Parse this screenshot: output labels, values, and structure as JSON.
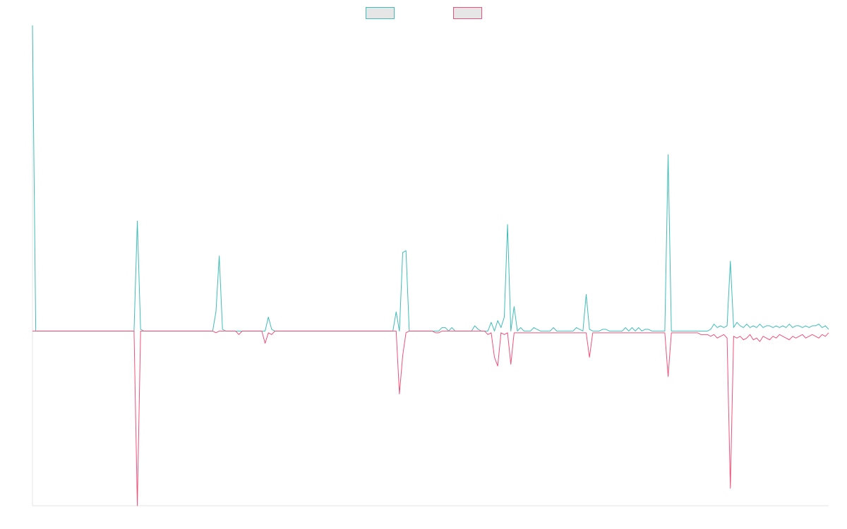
{
  "chart_data": {
    "type": "line",
    "title": "",
    "xlabel": "",
    "ylabel": "",
    "legend": {
      "position": "top-center"
    },
    "grid": false,
    "x_count": 244,
    "ylim": [
      -100,
      175
    ],
    "colors": {
      "series_a": "#3fbdb9",
      "series_b": "#f0517a",
      "legend_fill": "#e6e6e6",
      "axis": "#e6e6e6"
    },
    "series": [
      {
        "key": "series_a",
        "points": [
          [
            0,
            175
          ],
          [
            1,
            0
          ],
          [
            31,
            0
          ],
          [
            32,
            63
          ],
          [
            33,
            1
          ],
          [
            34,
            0
          ],
          [
            55,
            0
          ],
          [
            56,
            11
          ],
          [
            57,
            43
          ],
          [
            58,
            1
          ],
          [
            59,
            0
          ],
          [
            71,
            0
          ],
          [
            72,
            8
          ],
          [
            73,
            1
          ],
          [
            74,
            0
          ],
          [
            110,
            0
          ],
          [
            111,
            11
          ],
          [
            112,
            0
          ],
          [
            113,
            45
          ],
          [
            114,
            46
          ],
          [
            115,
            0
          ],
          [
            124,
            0
          ],
          [
            125,
            2
          ],
          [
            126,
            2
          ],
          [
            127,
            0
          ],
          [
            128,
            2
          ],
          [
            129,
            0
          ],
          [
            134,
            0
          ],
          [
            135,
            3
          ],
          [
            136,
            1
          ],
          [
            137,
            0
          ],
          [
            139,
            0
          ],
          [
            140,
            5
          ],
          [
            141,
            0
          ],
          [
            142,
            6
          ],
          [
            143,
            2
          ],
          [
            144,
            8
          ],
          [
            145,
            61
          ],
          [
            146,
            0
          ],
          [
            147,
            14
          ],
          [
            148,
            0
          ],
          [
            149,
            2
          ],
          [
            150,
            0
          ],
          [
            152,
            0
          ],
          [
            153,
            2
          ],
          [
            154,
            1
          ],
          [
            155,
            0
          ],
          [
            158,
            0
          ],
          [
            159,
            2
          ],
          [
            160,
            0
          ],
          [
            165,
            0
          ],
          [
            166,
            2
          ],
          [
            167,
            1
          ],
          [
            168,
            0
          ],
          [
            169,
            21
          ],
          [
            170,
            1
          ],
          [
            171,
            0
          ],
          [
            173,
            0
          ],
          [
            174,
            1
          ],
          [
            175,
            1
          ],
          [
            176,
            0
          ],
          [
            180,
            0
          ],
          [
            181,
            2
          ],
          [
            182,
            0
          ],
          [
            183,
            2
          ],
          [
            184,
            0
          ],
          [
            185,
            2
          ],
          [
            186,
            0
          ],
          [
            187,
            1
          ],
          [
            188,
            1
          ],
          [
            189,
            0
          ],
          [
            193,
            0
          ],
          [
            194,
            101
          ],
          [
            195,
            0
          ],
          [
            196,
            0
          ],
          [
            197,
            0
          ],
          [
            198,
            0
          ],
          [
            199,
            0
          ],
          [
            200,
            0
          ],
          [
            201,
            0
          ],
          [
            202,
            0
          ],
          [
            203,
            0
          ],
          [
            204,
            0
          ],
          [
            205,
            0
          ],
          [
            206,
            0
          ],
          [
            207,
            1
          ],
          [
            208,
            4
          ],
          [
            209,
            2
          ],
          [
            210,
            3
          ],
          [
            211,
            2
          ],
          [
            212,
            3
          ],
          [
            213,
            40
          ],
          [
            214,
            2
          ],
          [
            215,
            5
          ],
          [
            216,
            3
          ],
          [
            217,
            2
          ],
          [
            218,
            4
          ],
          [
            219,
            2
          ],
          [
            220,
            3
          ],
          [
            221,
            2
          ],
          [
            222,
            4
          ],
          [
            223,
            2
          ],
          [
            224,
            3
          ],
          [
            225,
            3
          ],
          [
            226,
            2
          ],
          [
            227,
            3
          ],
          [
            228,
            2
          ],
          [
            229,
            3
          ],
          [
            230,
            2
          ],
          [
            231,
            4
          ],
          [
            232,
            2
          ],
          [
            233,
            3
          ],
          [
            234,
            3
          ],
          [
            235,
            2
          ],
          [
            236,
            3
          ],
          [
            237,
            2
          ],
          [
            238,
            3
          ],
          [
            239,
            3
          ],
          [
            240,
            4
          ],
          [
            241,
            2
          ],
          [
            242,
            3
          ],
          [
            243,
            1
          ]
        ]
      },
      {
        "key": "series_b",
        "points": [
          [
            0,
            0
          ],
          [
            31,
            0
          ],
          [
            32,
            -100
          ],
          [
            33,
            0
          ],
          [
            55,
            0
          ],
          [
            56,
            -1
          ],
          [
            57,
            0
          ],
          [
            62,
            0
          ],
          [
            63,
            -2
          ],
          [
            64,
            0
          ],
          [
            70,
            0
          ],
          [
            71,
            -7
          ],
          [
            72,
            -1
          ],
          [
            73,
            -2
          ],
          [
            74,
            0
          ],
          [
            111,
            0
          ],
          [
            112,
            -36
          ],
          [
            113,
            -14
          ],
          [
            114,
            -1
          ],
          [
            115,
            0
          ],
          [
            122,
            0
          ],
          [
            123,
            -1
          ],
          [
            124,
            -1
          ],
          [
            125,
            0
          ],
          [
            138,
            0
          ],
          [
            139,
            -2
          ],
          [
            140,
            -1
          ],
          [
            141,
            -15
          ],
          [
            142,
            -20
          ],
          [
            143,
            -1
          ],
          [
            144,
            -2
          ],
          [
            145,
            -1
          ],
          [
            146,
            -19
          ],
          [
            147,
            -1
          ],
          [
            148,
            -1
          ],
          [
            149,
            -1
          ],
          [
            150,
            -1
          ],
          [
            151,
            -1
          ],
          [
            152,
            -1
          ],
          [
            153,
            -1
          ],
          [
            154,
            -1
          ],
          [
            155,
            -1
          ],
          [
            156,
            -1
          ],
          [
            157,
            -1
          ],
          [
            158,
            -1
          ],
          [
            159,
            -1
          ],
          [
            160,
            -1
          ],
          [
            161,
            -1
          ],
          [
            162,
            -1
          ],
          [
            163,
            -1
          ],
          [
            164,
            -1
          ],
          [
            165,
            -1
          ],
          [
            166,
            -1
          ],
          [
            167,
            -1
          ],
          [
            168,
            -1
          ],
          [
            169,
            -1
          ],
          [
            170,
            -15
          ],
          [
            171,
            -1
          ],
          [
            172,
            -1
          ],
          [
            173,
            -1
          ],
          [
            174,
            -1
          ],
          [
            175,
            -1
          ],
          [
            176,
            -1
          ],
          [
            177,
            -1
          ],
          [
            178,
            -1
          ],
          [
            179,
            -1
          ],
          [
            180,
            -1
          ],
          [
            181,
            -1
          ],
          [
            182,
            -1
          ],
          [
            183,
            -1
          ],
          [
            184,
            -1
          ],
          [
            185,
            -1
          ],
          [
            186,
            -1
          ],
          [
            187,
            -1
          ],
          [
            188,
            -1
          ],
          [
            189,
            -1
          ],
          [
            190,
            -1
          ],
          [
            191,
            -1
          ],
          [
            192,
            -1
          ],
          [
            193,
            -1
          ],
          [
            194,
            -26
          ],
          [
            195,
            -1
          ],
          [
            196,
            -1
          ],
          [
            197,
            -1
          ],
          [
            198,
            -1
          ],
          [
            199,
            -1
          ],
          [
            200,
            -1
          ],
          [
            201,
            -1
          ],
          [
            202,
            -1
          ],
          [
            203,
            -1
          ],
          [
            204,
            -2
          ],
          [
            205,
            -2
          ],
          [
            206,
            -2
          ],
          [
            207,
            -3
          ],
          [
            208,
            -2
          ],
          [
            209,
            -4
          ],
          [
            210,
            -3
          ],
          [
            211,
            -2
          ],
          [
            212,
            -4
          ],
          [
            213,
            -90
          ],
          [
            214,
            -3
          ],
          [
            215,
            -4
          ],
          [
            216,
            -3
          ],
          [
            217,
            -5
          ],
          [
            218,
            -4
          ],
          [
            219,
            -2
          ],
          [
            220,
            -5
          ],
          [
            221,
            -4
          ],
          [
            222,
            -6
          ],
          [
            223,
            -3
          ],
          [
            224,
            -4
          ],
          [
            225,
            -5
          ],
          [
            226,
            -3
          ],
          [
            227,
            -4
          ],
          [
            228,
            -2
          ],
          [
            229,
            -3
          ],
          [
            230,
            -4
          ],
          [
            231,
            -5
          ],
          [
            232,
            -3
          ],
          [
            233,
            -4
          ],
          [
            234,
            -3
          ],
          [
            235,
            -2
          ],
          [
            236,
            -4
          ],
          [
            237,
            -3
          ],
          [
            238,
            -2
          ],
          [
            239,
            -3
          ],
          [
            240,
            -4
          ],
          [
            241,
            -2
          ],
          [
            242,
            -3
          ],
          [
            243,
            -1
          ]
        ]
      }
    ]
  }
}
